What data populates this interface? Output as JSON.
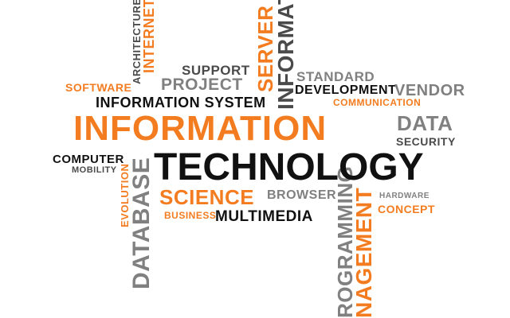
{
  "words": {
    "architecture": "ARCHITECTURE",
    "internet": "INTERNET",
    "server": "SERVER",
    "information_vertical": "INFORMATION",
    "support": "SUPPORT",
    "software": "SOFTWARE",
    "project": "PROJECT",
    "standard": "STANDARD",
    "development": "DEVELOPMENT",
    "vendor": "VENDOR",
    "information_system": "INFORMATION SYSTEM",
    "communication": "COMMUNICATION",
    "information": "INFORMATION",
    "data": "DATA",
    "security": "SECURITY",
    "computer": "COMPUTER",
    "mobility": "MOBILITY",
    "technology": "TECHNOLOGY",
    "database": "DATABASE",
    "evolution": "EVOLUTION",
    "science": "SCIENCE",
    "browser": "BROWSER",
    "hardware": "HARDWARE",
    "concept": "CONCEPT",
    "business": "BUSINESS",
    "multimedia": "MULTIMEDIA",
    "programming": "ROGRAMMING",
    "management": "NAGEMENT"
  },
  "colors": {
    "orange": "#f47c20",
    "gray": "#808080",
    "black": "#111111",
    "dark_gray": "#4a4a4a",
    "background": "#ffffff"
  }
}
